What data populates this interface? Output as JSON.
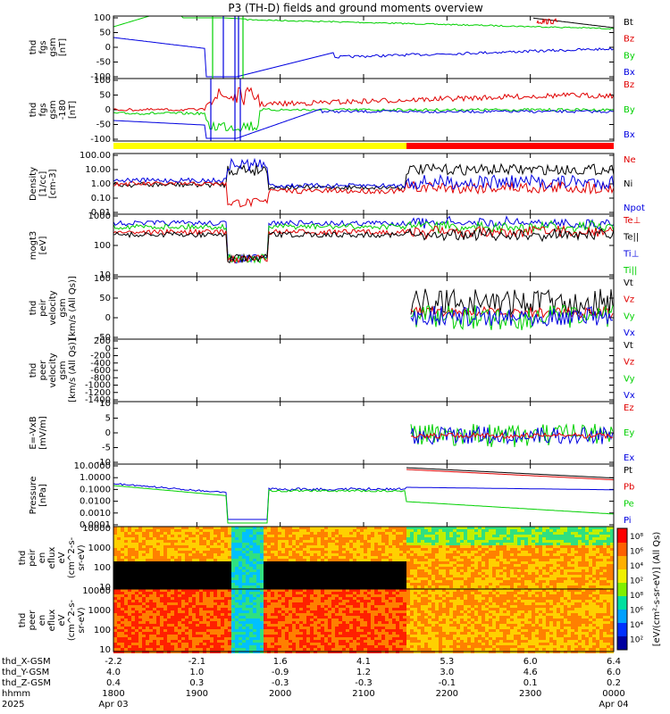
{
  "title": "P3 (TH-D) fields and ground moments overview",
  "colors": {
    "black": "#000000",
    "red": "#e00000",
    "green": "#00d000",
    "blue": "#0000e0",
    "yellow": "#ffff00",
    "barRed": "#ff0000"
  },
  "chart_data": [
    {
      "type": "line",
      "id": "p1",
      "ylabel": [
        "thd",
        "fgs",
        "gsm",
        "[nT]"
      ],
      "ylim": [
        -100,
        100
      ],
      "yticks": [
        "100",
        "50",
        "0",
        "-50",
        "-100"
      ],
      "series": [
        {
          "name": "Bt",
          "color": "black"
        },
        {
          "name": "Bz",
          "color": "red"
        },
        {
          "name": "By",
          "color": "green"
        },
        {
          "name": "Bx",
          "color": "blue"
        }
      ]
    },
    {
      "type": "line",
      "id": "p2",
      "ylabel": [
        "thd",
        "fgs",
        "gsm",
        "-180",
        "[nT]"
      ],
      "ylim": [
        -120,
        120
      ],
      "yticks": [
        "100",
        "50",
        "0",
        "-50",
        "-100"
      ],
      "series": [
        {
          "name": "Bz",
          "color": "red"
        },
        {
          "name": "By",
          "color": "green"
        },
        {
          "name": "Bx",
          "color": "blue"
        }
      ]
    },
    {
      "type": "line",
      "id": "p3",
      "ylabel": [
        "Density",
        "[1/cc]",
        "[cm-3]"
      ],
      "scale": "log",
      "yticks": [
        "100.00",
        "10.00",
        "1.00",
        "0.10",
        "0.01"
      ],
      "series": [
        {
          "name": "Ne",
          "color": "red"
        },
        {
          "name": "Ni",
          "color": "black"
        },
        {
          "name": "Npot",
          "color": "blue"
        }
      ]
    },
    {
      "type": "line",
      "id": "p4",
      "ylabel": [
        "mogt3",
        "[eV]"
      ],
      "scale": "log",
      "yticks": [
        "1000",
        "100",
        "10"
      ],
      "series": [
        {
          "name": "Te⊥",
          "color": "red"
        },
        {
          "name": "Te||",
          "color": "black"
        },
        {
          "name": "Ti⊥",
          "color": "blue"
        },
        {
          "name": "Ti||",
          "color": "green"
        }
      ]
    },
    {
      "type": "line",
      "id": "p5",
      "ylabel": [
        "thd",
        "peir",
        "velocity",
        "gsm",
        "[km/s (All Qs)]"
      ],
      "ylim": [
        -80,
        100
      ],
      "yticks": [
        "100",
        "50",
        "0",
        "-50"
      ],
      "series": [
        {
          "name": "Vt",
          "color": "black"
        },
        {
          "name": "Vz",
          "color": "red"
        },
        {
          "name": "Vy",
          "color": "green"
        },
        {
          "name": "Vx",
          "color": "blue"
        }
      ]
    },
    {
      "type": "line",
      "id": "p6",
      "ylabel": [
        "thd",
        "peer",
        "velocity",
        "gsm",
        "[km/s (All Qs)]"
      ],
      "ylim": [
        -1400,
        200
      ],
      "yticks": [
        "200",
        "0",
        "-200",
        "-400",
        "-600",
        "-800",
        "-1000",
        "-1200",
        "-1400"
      ],
      "series": [
        {
          "name": "Vt",
          "color": "black"
        },
        {
          "name": "Vz",
          "color": "red"
        },
        {
          "name": "Vy",
          "color": "green"
        },
        {
          "name": "Vx",
          "color": "blue"
        }
      ]
    },
    {
      "type": "line",
      "id": "p7",
      "ylabel": [
        "E=-VxB",
        "[mV/m]"
      ],
      "ylim": [
        -10,
        10
      ],
      "yticks": [
        "10",
        "5",
        "0",
        "-5",
        "-10"
      ],
      "series": [
        {
          "name": "Ez",
          "color": "red"
        },
        {
          "name": "Ey",
          "color": "green"
        },
        {
          "name": "Ex",
          "color": "blue"
        }
      ]
    },
    {
      "type": "line",
      "id": "p8",
      "ylabel": [
        "Pressure",
        "[nPa]"
      ],
      "scale": "log",
      "yticks": [
        "10.0000",
        "1.0000",
        "0.1000",
        "0.0100",
        "0.0010",
        "0.0001"
      ],
      "series": [
        {
          "name": "Pt",
          "color": "black"
        },
        {
          "name": "Pb",
          "color": "red"
        },
        {
          "name": "Pe",
          "color": "green"
        },
        {
          "name": "Pi",
          "color": "blue"
        }
      ]
    },
    {
      "type": "heatmap",
      "id": "p9",
      "ylabel": [
        "thd",
        "peir",
        "en",
        "eflux",
        "eV",
        "(cm^2-s-",
        "sr-eV)"
      ],
      "yticks": [
        "10000",
        "1000",
        "100",
        "10"
      ]
    },
    {
      "type": "heatmap",
      "id": "p10",
      "ylabel": [
        "thd",
        "peer",
        "en",
        "eflux",
        "eV",
        "(cm^2-s-",
        "sr-eV)"
      ],
      "yticks": [
        "10000",
        "1000",
        "100",
        "10"
      ]
    }
  ],
  "colorbar": {
    "ticks": [
      "10⁸",
      "10⁶",
      "10⁴",
      "10²",
      "10⁸",
      "10⁶",
      "10⁴",
      "10²"
    ],
    "label": "[eV/(cm²-s-sr-eV)] (All Qs)"
  },
  "xaxis": {
    "rows": [
      {
        "label": "thd_X-GSM",
        "values": [
          "-2.2",
          "-2.1",
          "1.6",
          "4.1",
          "5.3",
          "6.0",
          "6.4"
        ]
      },
      {
        "label": "thd_Y-GSM",
        "values": [
          "4.0",
          "1.0",
          "-0.9",
          "1.2",
          "3.0",
          "4.6",
          "6.0"
        ]
      },
      {
        "label": "thd_Z-GSM",
        "values": [
          "0.4",
          "0.3",
          "-0.3",
          "-0.3",
          "-0.1",
          "0.1",
          "0.2"
        ]
      },
      {
        "label": "hhmm",
        "values": [
          "1800",
          "1900",
          "2000",
          "2100",
          "2200",
          "2300",
          "0000"
        ]
      },
      {
        "label": "2025",
        "values": [
          "Apr 03",
          "",
          "",
          "",
          "",
          "",
          "Apr 04"
        ]
      }
    ]
  }
}
